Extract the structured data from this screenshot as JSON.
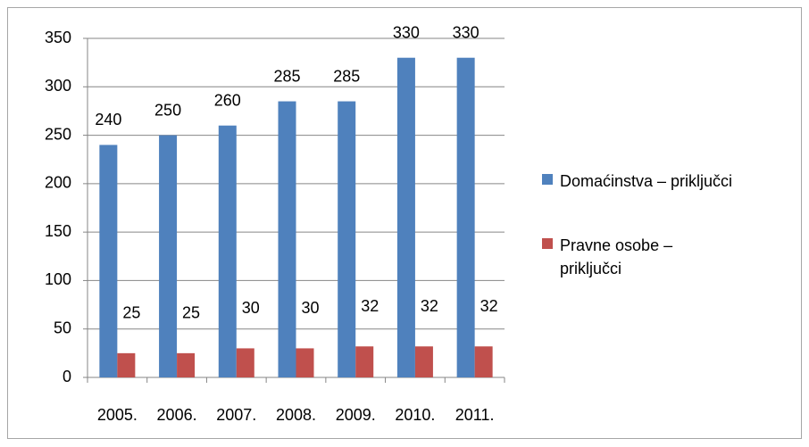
{
  "chart_data": {
    "type": "bar",
    "categories": [
      "2005.",
      "2006.",
      "2007.",
      "2008.",
      "2009.",
      "2010.",
      "2011."
    ],
    "series": [
      {
        "name": "Domaćinstva – priključci",
        "color": "#4f81bd",
        "values": [
          240,
          250,
          260,
          285,
          285,
          330,
          330
        ]
      },
      {
        "name": "Pravne osobe – priključci",
        "color": "#c0504d",
        "values": [
          25,
          25,
          30,
          30,
          32,
          32,
          32
        ]
      }
    ],
    "ylim": [
      0,
      350
    ],
    "yticks": [
      0,
      50,
      100,
      150,
      200,
      250,
      300,
      350
    ],
    "grid": true,
    "legend": "right"
  }
}
